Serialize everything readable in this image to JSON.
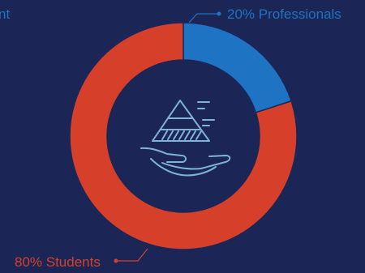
{
  "chart_data": {
    "type": "pie",
    "style": "donut",
    "slices": [
      {
        "label": "20% Professionals",
        "value": 20,
        "color": "#1e73c2"
      },
      {
        "label": "80% Students",
        "value": 80,
        "color": "#d6402a"
      }
    ],
    "partial_label_left": "nt",
    "center_icon": "hand-holding-pyramid-icon",
    "icon_color": "#7fb3d9"
  }
}
